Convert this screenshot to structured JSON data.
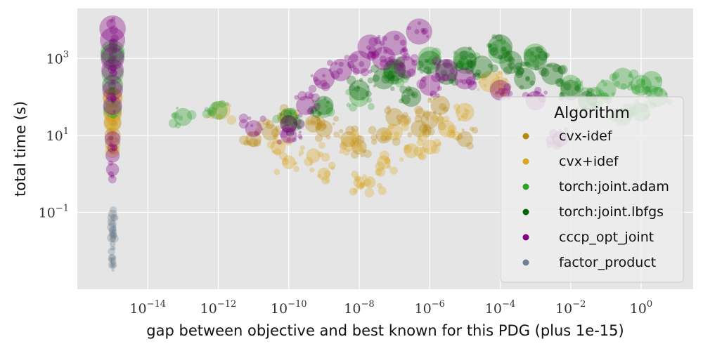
{
  "chart_data": {
    "type": "scatter",
    "xlabel": "gap between objective and best known for this PDG (plus 1e-15)",
    "ylabel": "total time (s)",
    "xscale": "log",
    "yscale": "log",
    "xlim": [
      1e-16,
      30.0
    ],
    "ylim": [
      0.001,
      20000.0
    ],
    "xticks": [
      {
        "base": "10",
        "exp": "−14",
        "value": 1e-14
      },
      {
        "base": "10",
        "exp": "−12",
        "value": 1e-12
      },
      {
        "base": "10",
        "exp": "−10",
        "value": 1e-10
      },
      {
        "base": "10",
        "exp": "−8",
        "value": 1e-08
      },
      {
        "base": "10",
        "exp": "−6",
        "value": 1e-06
      },
      {
        "base": "10",
        "exp": "−4",
        "value": 0.0001
      },
      {
        "base": "10",
        "exp": "−2",
        "value": 0.01
      },
      {
        "base": "10",
        "exp": "0",
        "value": 1
      }
    ],
    "yticks": [
      {
        "base": "10",
        "exp": "3",
        "value": 1000.0
      },
      {
        "base": "10",
        "exp": "1",
        "value": 10.0
      },
      {
        "base": "10",
        "exp": "−1",
        "value": 0.1
      }
    ],
    "grid": true,
    "legend": {
      "title": "Algorithm",
      "placement": "right",
      "entries": [
        {
          "label": "cvx-idef",
          "color": "#b8860b"
        },
        {
          "label": "cvx+idef",
          "color": "#daa520"
        },
        {
          "label": "torch:joint.adam",
          "color": "#2ca02c"
        },
        {
          "label": "torch:joint.lbfgs",
          "color": "#006400"
        },
        {
          "label": "cccp_opt_joint",
          "color": "#800080"
        },
        {
          "label": "factor_product",
          "color": "#708090"
        }
      ]
    },
    "series": [
      {
        "name": "factor_product",
        "color": "#708090",
        "points": [
          [
            1e-15,
            0.09
          ],
          [
            1e-15,
            0.05
          ],
          [
            1e-15,
            0.035
          ],
          [
            1e-15,
            0.028
          ],
          [
            1e-15,
            0.02
          ],
          [
            1e-15,
            0.015
          ],
          [
            1e-15,
            0.006
          ],
          [
            1e-15,
            0.0045
          ],
          [
            1e-15,
            0.004
          ]
        ]
      },
      {
        "name": "cvx-idef",
        "color": "#b8860b",
        "points": [
          [
            1e-15,
            100
          ],
          [
            1e-15,
            40
          ],
          [
            1e-15,
            22
          ],
          [
            1e-15,
            10
          ],
          [
            1e-15,
            6
          ],
          [
            1e-11,
            8
          ],
          [
            3e-11,
            12
          ],
          [
            1e-10,
            30
          ],
          [
            5e-10,
            20
          ],
          [
            1e-09,
            15
          ],
          [
            5e-09,
            8
          ],
          [
            1e-08,
            5
          ],
          [
            5e-08,
            10
          ],
          [
            1e-07,
            30
          ],
          [
            5e-07,
            15
          ],
          [
            1e-06,
            25
          ],
          [
            2e-06,
            60
          ],
          [
            1e-05,
            8
          ]
        ]
      },
      {
        "name": "cvx+idef",
        "color": "#daa520",
        "points": [
          [
            1e-15,
            90
          ],
          [
            1e-15,
            35
          ],
          [
            1e-15,
            20
          ],
          [
            1e-15,
            4
          ],
          [
            1.2e-12,
            45
          ],
          [
            5e-11,
            5
          ],
          [
            1e-10,
            2
          ],
          [
            5e-10,
            3
          ],
          [
            1e-09,
            1
          ],
          [
            5e-09,
            6
          ],
          [
            1e-08,
            0.6
          ],
          [
            2e-08,
            0.6
          ],
          [
            5e-08,
            2
          ],
          [
            1e-07,
            12
          ],
          [
            3e-07,
            4
          ],
          [
            1e-06,
            5
          ],
          [
            3e-06,
            15
          ],
          [
            1e-05,
            40
          ],
          [
            5e-05,
            250
          ],
          [
            0.0001,
            180
          ]
        ]
      },
      {
        "name": "torch:joint.adam",
        "color": "#2ca02c",
        "points": [
          [
            1e-15,
            1500
          ],
          [
            1e-15,
            400
          ],
          [
            1e-15,
            50
          ],
          [
            1e-13,
            30
          ],
          [
            1e-12,
            45
          ],
          [
            1e-10,
            30
          ],
          [
            1e-09,
            50
          ],
          [
            1e-08,
            100
          ],
          [
            1e-07,
            400
          ],
          [
            1e-06,
            1000
          ],
          [
            1e-05,
            800
          ],
          [
            0.0001,
            1500
          ],
          [
            0.001,
            1200
          ],
          [
            0.01,
            200
          ],
          [
            0.05,
            100
          ],
          [
            0.1,
            150
          ],
          [
            0.3,
            300
          ],
          [
            1,
            200
          ],
          [
            2,
            250
          ],
          [
            3,
            100
          ],
          [
            1,
            40
          ],
          [
            0.3,
            30
          ]
        ]
      },
      {
        "name": "torch:joint.lbfgs",
        "color": "#006400",
        "points": [
          [
            1e-15,
            1200
          ],
          [
            1e-15,
            200
          ],
          [
            1e-10,
            20
          ],
          [
            1e-09,
            60
          ],
          [
            1e-08,
            150
          ],
          [
            5e-08,
            300
          ],
          [
            1e-07,
            500
          ],
          [
            3e-07,
            100
          ],
          [
            1e-06,
            800
          ],
          [
            3e-06,
            400
          ],
          [
            1e-05,
            1000
          ],
          [
            3e-05,
            600
          ],
          [
            0.0001,
            2000
          ],
          [
            0.0002,
            800
          ],
          [
            0.0005,
            300
          ],
          [
            0.001,
            1000
          ],
          [
            0.003,
            400
          ],
          [
            0.01,
            150
          ],
          [
            0.03,
            80
          ]
        ]
      },
      {
        "name": "cccp_opt_joint",
        "color": "#800080",
        "points": [
          [
            1e-15,
            6000
          ],
          [
            1e-15,
            3000
          ],
          [
            1e-15,
            1000
          ],
          [
            1e-15,
            500
          ],
          [
            1e-15,
            150
          ],
          [
            1e-15,
            60
          ],
          [
            1e-15,
            8
          ],
          [
            1e-15,
            3
          ],
          [
            1e-15,
            1.3
          ],
          [
            1e-11,
            15
          ],
          [
            1e-10,
            20
          ],
          [
            1e-10,
            10
          ],
          [
            3e-10,
            60
          ],
          [
            1e-09,
            300
          ],
          [
            3e-09,
            500
          ],
          [
            1e-08,
            800
          ],
          [
            2e-08,
            2000
          ],
          [
            5e-08,
            1000
          ],
          [
            1e-07,
            2500
          ],
          [
            2e-07,
            600
          ],
          [
            5e-07,
            5000
          ],
          [
            1e-06,
            200
          ],
          [
            3e-06,
            500
          ],
          [
            1e-05,
            300
          ],
          [
            0.0001,
            150
          ],
          [
            0.001,
            80
          ],
          [
            0.005,
            8
          ]
        ]
      }
    ]
  }
}
